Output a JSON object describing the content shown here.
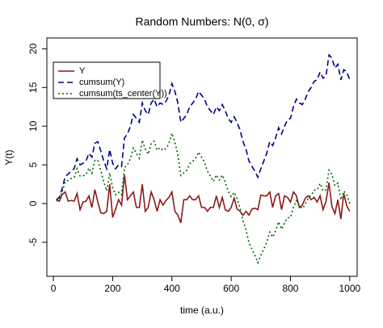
{
  "chart_data": {
    "type": "line",
    "title": "Random Numbers: N(0, σ)",
    "x_label": "time (a.u.)",
    "y_label": "Y(t)",
    "x": [
      10,
      20,
      30,
      40,
      50,
      60,
      70,
      80,
      90,
      100,
      110,
      120,
      130,
      140,
      150,
      160,
      170,
      180,
      190,
      200,
      210,
      220,
      230,
      240,
      250,
      260,
      270,
      280,
      290,
      300,
      310,
      320,
      330,
      340,
      350,
      360,
      370,
      380,
      390,
      400,
      410,
      420,
      430,
      440,
      450,
      460,
      470,
      480,
      490,
      500,
      510,
      520,
      530,
      540,
      550,
      560,
      570,
      580,
      590,
      600,
      610,
      620,
      630,
      640,
      650,
      660,
      670,
      680,
      690,
      700,
      710,
      720,
      730,
      740,
      750,
      760,
      770,
      780,
      790,
      800,
      810,
      820,
      830,
      840,
      850,
      860,
      870,
      880,
      890,
      900,
      910,
      920,
      930,
      940,
      950,
      960,
      970,
      980,
      990,
      1000
    ],
    "series": [
      {
        "name": "Y",
        "color": "#8b1a1a",
        "dash": "solid",
        "values": [
          0.5,
          0.3,
          1.2,
          1.5,
          0.3,
          0.4,
          0.3,
          1.3,
          -0.8,
          0.2,
          0.3,
          1,
          -0.5,
          1.8,
          0.2,
          -1.2,
          -1.3,
          -1,
          2.5,
          -1.8,
          -0.7,
          0.5,
          -0.2,
          3.7,
          0.5,
          1,
          1.5,
          -0.5,
          -0.5,
          2.5,
          -1,
          -0.5,
          1.5,
          0.5,
          -1,
          0.5,
          -0.2,
          0.4,
          0.8,
          1.5,
          -1,
          -1.5,
          -2.5,
          0.5,
          0.5,
          1,
          0.5,
          0.5,
          1,
          -0.5,
          -0.5,
          -1,
          -0.5,
          -0.5,
          1,
          -0.5,
          0.8,
          -0.8,
          -1,
          -0.5,
          0.7,
          -0.7,
          -1,
          -1.5,
          -1,
          -1.5,
          -0.7,
          -0.6,
          -0.8,
          1.1,
          1,
          1,
          1.5,
          -0.5,
          1,
          1.3,
          -0.8,
          1,
          0.8,
          0.2,
          1.5,
          1,
          -0.5,
          -0.2,
          0.7,
          1,
          0.5,
          0.8,
          0.2,
          1,
          -0.8,
          0.3,
          2.7,
          -0.4,
          -1.3,
          0.5,
          -2,
          1.3,
          -0.3,
          -1
        ]
      },
      {
        "name": "cumsum(Y)",
        "color": "#00008b",
        "dash": "dashed",
        "values": [
          0.5,
          0.8,
          2,
          3.5,
          3.8,
          4.2,
          4.5,
          5.8,
          5,
          5.2,
          5.5,
          6.5,
          6,
          7.8,
          8,
          6.8,
          5.5,
          4.5,
          7,
          5.2,
          4.5,
          5,
          4.8,
          8.5,
          9,
          10,
          11.5,
          11,
          10.5,
          13,
          12,
          11.5,
          13,
          13.5,
          12.5,
          13,
          12.8,
          13.2,
          14,
          15.5,
          14.5,
          13,
          10.5,
          11,
          11.5,
          12.5,
          13,
          13.5,
          14.5,
          14,
          13.5,
          12.5,
          12,
          11.5,
          12.5,
          12,
          12.8,
          12,
          11,
          10.5,
          11.2,
          10.5,
          9.5,
          8,
          7,
          5.5,
          4.8,
          4.2,
          3.4,
          4.5,
          5.5,
          6.5,
          8,
          7.5,
          8.5,
          9.8,
          9,
          10,
          10.8,
          11,
          12.5,
          13.5,
          13,
          12.8,
          13.5,
          14.5,
          15,
          15.8,
          16,
          17,
          16.2,
          16.5,
          19.2,
          18.8,
          17.5,
          18,
          16,
          17.3,
          17,
          16
        ]
      },
      {
        "name": "cumsum(ts_center(Y))",
        "color": "#006400",
        "dash": "dotted",
        "values": [
          0.34,
          0.48,
          1.52,
          2.86,
          3,
          3.24,
          3.38,
          4.52,
          3.56,
          3.6,
          3.74,
          4.58,
          3.92,
          5.56,
          5.6,
          4.24,
          2.78,
          1.62,
          3.96,
          2,
          1.14,
          1.48,
          1.12,
          4.66,
          5,
          5.84,
          7.18,
          6.52,
          5.86,
          8.2,
          7.04,
          6.38,
          7.72,
          8.06,
          6.9,
          7.24,
          6.88,
          7.12,
          7.76,
          9.1,
          7.94,
          6.28,
          3.62,
          3.96,
          4.3,
          5.14,
          5.48,
          5.82,
          6.66,
          6,
          5.34,
          4.18,
          3.52,
          2.86,
          3.7,
          3.04,
          3.68,
          2.72,
          1.56,
          0.9,
          1.44,
          0.58,
          -0.58,
          -2.24,
          -3.4,
          -5.06,
          -5.92,
          -6.68,
          -7.64,
          -6.7,
          -5.86,
          -5.02,
          -3.68,
          -4.34,
          -3.5,
          -2.36,
          -3.32,
          -2.48,
          -1.84,
          -1.8,
          -0.46,
          0.38,
          -0.28,
          -0.64,
          -0.1,
          0.74,
          1.08,
          1.72,
          1.76,
          2.6,
          1.64,
          1.78,
          4.32,
          3.76,
          2.3,
          2.64,
          0.48,
          1.62,
          1.16,
          0
        ]
      }
    ],
    "xlim": [
      -22,
      1025
    ],
    "xticks": [
      0,
      200,
      400,
      600,
      800,
      1000
    ],
    "ylim": [
      -9.4,
      21.4
    ],
    "yticks": [
      -5,
      0,
      5,
      10,
      15,
      20
    ],
    "legend": "top-left",
    "grid": false
  }
}
